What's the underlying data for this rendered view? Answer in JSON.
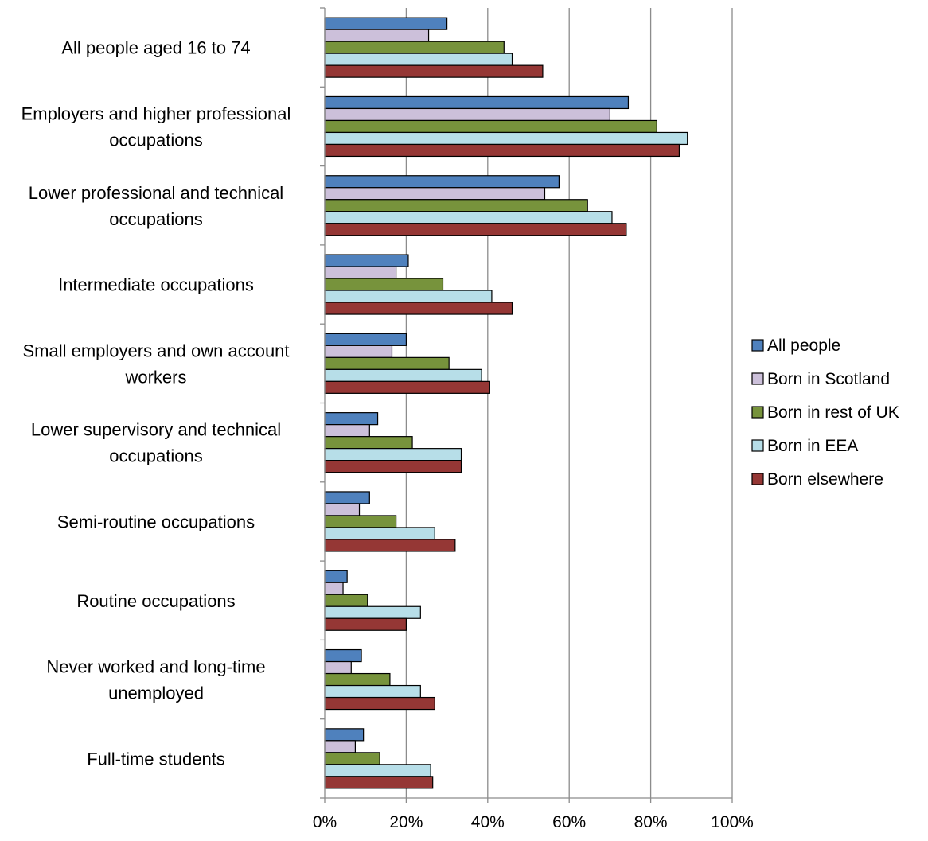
{
  "chart_data": {
    "type": "bar",
    "orientation": "horizontal",
    "categories": [
      [
        "All people aged 16 to 74"
      ],
      [
        "Employers and higher professional",
        "occupations"
      ],
      [
        "Lower professional and technical",
        "occupations"
      ],
      [
        "Intermediate occupations"
      ],
      [
        "Small employers and own account",
        "workers"
      ],
      [
        "Lower supervisory and technical",
        "occupations"
      ],
      [
        "Semi-routine occupations"
      ],
      [
        "Routine occupations"
      ],
      [
        "Never worked and long-time",
        "unemployed"
      ],
      [
        "Full-time students"
      ]
    ],
    "series": [
      {
        "name": "All people",
        "color": "#4f81bd",
        "values": [
          30,
          74.5,
          57.5,
          20.5,
          20,
          13,
          11,
          5.5,
          9,
          9.5
        ]
      },
      {
        "name": "Born in Scotland",
        "color": "#ccc0da",
        "values": [
          25.5,
          70,
          54,
          17.5,
          16.5,
          11,
          8.5,
          4.5,
          6.5,
          7.5
        ]
      },
      {
        "name": "Born in rest of UK",
        "color": "#77933c",
        "values": [
          44,
          81.5,
          64.5,
          29,
          30.5,
          21.5,
          17.5,
          10.5,
          16,
          13.5
        ]
      },
      {
        "name": "Born in EEA",
        "color": "#b7dee8",
        "values": [
          46,
          89,
          70.5,
          41,
          38.5,
          33.5,
          27,
          23.5,
          23.5,
          26
        ]
      },
      {
        "name": "Born elsewhere",
        "color": "#953735",
        "values": [
          53.5,
          87,
          74,
          46,
          40.5,
          33.5,
          32,
          20,
          27,
          26.5
        ]
      }
    ],
    "xlim": [
      0,
      100
    ],
    "x_ticks": [
      "0%",
      "20%",
      "40%",
      "60%",
      "80%",
      "100%"
    ],
    "grid": true,
    "legend_position": "right"
  }
}
